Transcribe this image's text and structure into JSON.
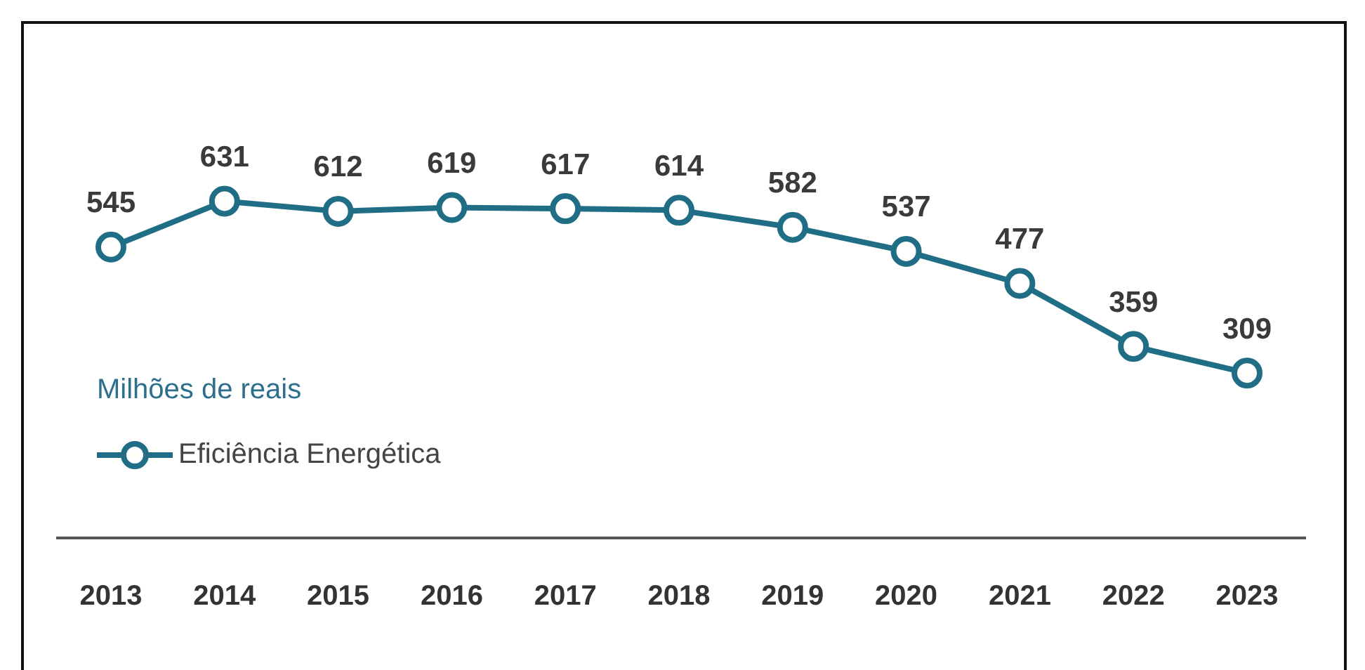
{
  "chart_data": {
    "type": "line",
    "legend_title": "Milhões de reais",
    "categories": [
      "2013",
      "2014",
      "2015",
      "2016",
      "2017",
      "2018",
      "2019",
      "2020",
      "2021",
      "2022",
      "2023"
    ],
    "series": [
      {
        "name": "Eficiência Energética",
        "color": "#1f6e86",
        "values": [
          545,
          631,
          612,
          619,
          617,
          614,
          582,
          537,
          477,
          359,
          309
        ]
      }
    ],
    "tick_labels": "x",
    "data_labels": true,
    "legend": "bottom left",
    "marker": "circle",
    "line_style": "solid",
    "grid": false
  }
}
